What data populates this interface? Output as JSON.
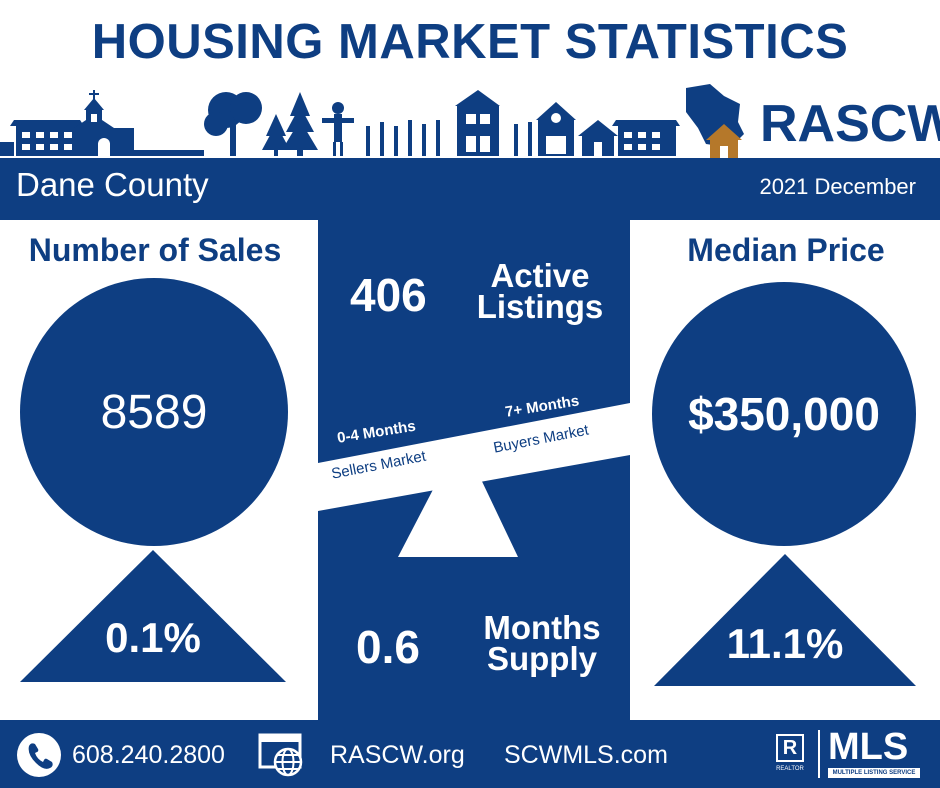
{
  "title": "HOUSING MARKET STATISTICS",
  "brand": {
    "name": "RASCW",
    "color": "#0e3e82",
    "accent": "#b5782a"
  },
  "header": {
    "county": "Dane County",
    "period": "2021 December"
  },
  "sales": {
    "title": "Number of Sales",
    "value": "8589",
    "change": "0.1%",
    "trend": "up"
  },
  "price": {
    "title": "Median Price",
    "value": "$350,000",
    "change": "11.1%",
    "trend": "up"
  },
  "listings": {
    "value": "406",
    "label_line1": "Active",
    "label_line2": "Listings"
  },
  "supply": {
    "value": "0.6",
    "label_line1": "Months",
    "label_line2": "Supply"
  },
  "scale": {
    "left_months": "0-4 Months",
    "left_market": "Sellers Market",
    "right_months": "7+ Months",
    "right_market": "Buyers Market"
  },
  "footer": {
    "phone": "608.240.2800",
    "site1": "RASCW.org",
    "site2": "SCWMLS.com",
    "realtor_label": "REALTOR",
    "mls_label": "MLS",
    "mls_sub": "MULTIPLE LISTING SERVICE",
    "icons": [
      "phone-icon",
      "web-icon"
    ]
  }
}
